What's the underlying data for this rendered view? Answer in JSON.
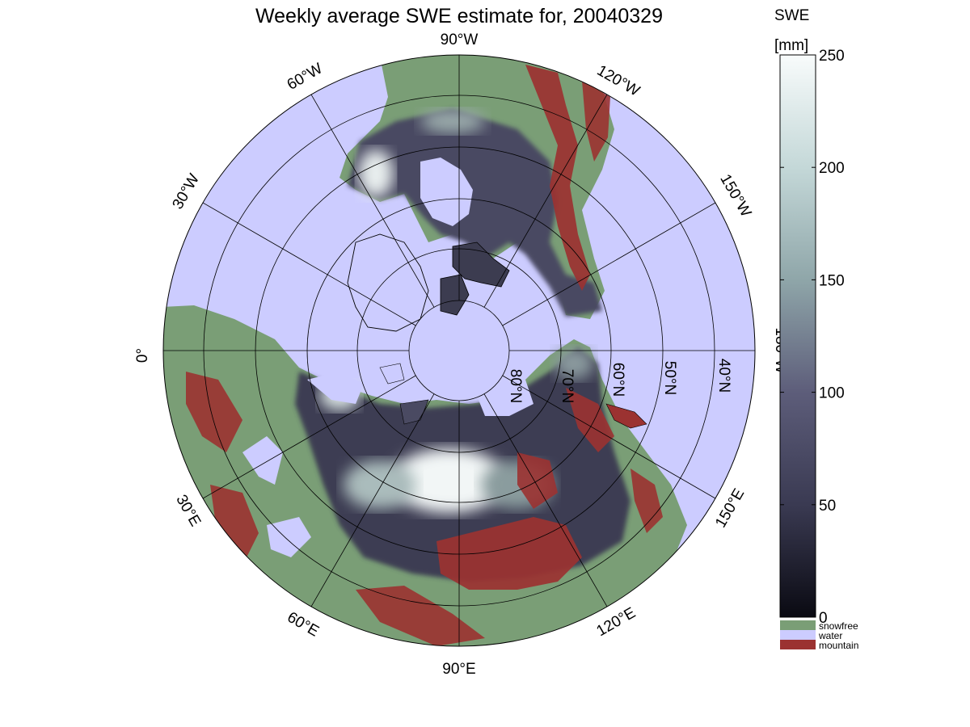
{
  "title": "Weekly average SWE estimate for, 20040329",
  "longitude_labels": [
    "90°W",
    "60°W",
    "120°W",
    "30°W",
    "150°W",
    "0°",
    "180°W",
    "30°E",
    "150°E",
    "60°E",
    "120°E",
    "90°E"
  ],
  "latitude_labels": [
    "80°N",
    "70°N",
    "60°N",
    "50°N",
    "40°N"
  ],
  "colorbar": {
    "title": "SWE",
    "unit": "[mm]",
    "range": [
      0,
      250
    ],
    "ticks": [
      "0",
      "50",
      "100",
      "150",
      "200",
      "250"
    ],
    "tick_values": [
      0,
      50,
      100,
      150,
      200,
      250
    ],
    "colors": [
      "#0a0a12",
      "#3a3a52",
      "#5d5d7a",
      "#8fa6a9",
      "#c4d8d8",
      "#f8fbfb"
    ]
  },
  "legend": [
    {
      "label": "snowfree",
      "color": "#7a9e76"
    },
    {
      "label": "water",
      "color": "#ccccff"
    },
    {
      "label": "mountain",
      "color": "#9b3231"
    }
  ]
}
